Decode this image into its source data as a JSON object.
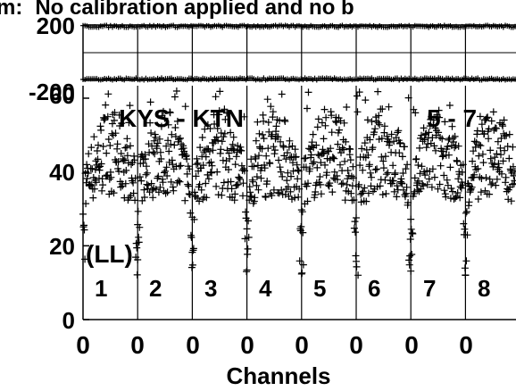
{
  "chart_data": {
    "type": "scatter",
    "title": "No calibration applied and no b",
    "title_prefix": "m:",
    "xlabel": "Channels",
    "x_tick_labels": [
      "0",
      "0",
      "0",
      "0",
      "0",
      "0",
      "0",
      "0"
    ],
    "panel_labels": [
      "1",
      "2",
      "3",
      "4",
      "5",
      "6",
      "7",
      "8"
    ],
    "annotations": [
      "KYS - KTN",
      "5 - 7",
      "(LL)"
    ],
    "panels": [
      {
        "name": "phase",
        "ylim": [
          -200,
          200
        ],
        "y_tick_labels": [
          "200",
          "-200"
        ],
        "series": [
          {
            "band": "upper",
            "y_center": 190
          },
          {
            "band": "lower",
            "y_center": -190
          }
        ]
      },
      {
        "name": "amplitude",
        "ylim": [
          0,
          65
        ],
        "y_tick_labels": [
          "60",
          "40",
          "20",
          "0"
        ],
        "y_ticks": [
          60,
          40,
          20,
          0
        ],
        "marker": "plus",
        "color": "#000000",
        "segments": 8,
        "amplitude_profile": {
          "typical_min": 28,
          "typical_max": 50,
          "edge_dip_min": 12,
          "peak_max": 62
        }
      }
    ]
  }
}
